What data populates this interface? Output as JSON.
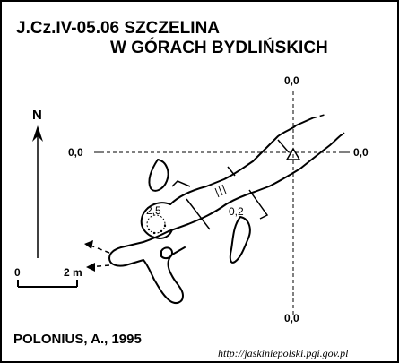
{
  "title": {
    "line1": "J.Cz.IV-05.06  SZCZELINA",
    "line2": "W GÓRACH BYDLIŃSKICH"
  },
  "north_label": "N",
  "grid_labels": {
    "top": "0,0",
    "left": "0,0",
    "right": "0,0",
    "bottom": "0,0"
  },
  "scale_bar": {
    "start_label": "0",
    "end_label": "2 m"
  },
  "depth_labels": {
    "chamber": "2,5",
    "passage": "0,2"
  },
  "author_line": "POLONIUS, A., 1995",
  "source_url": "http://jaskiniepolski.pgi.gov.pl",
  "colors": {
    "ink": "#000000",
    "background": "#ffffff"
  }
}
